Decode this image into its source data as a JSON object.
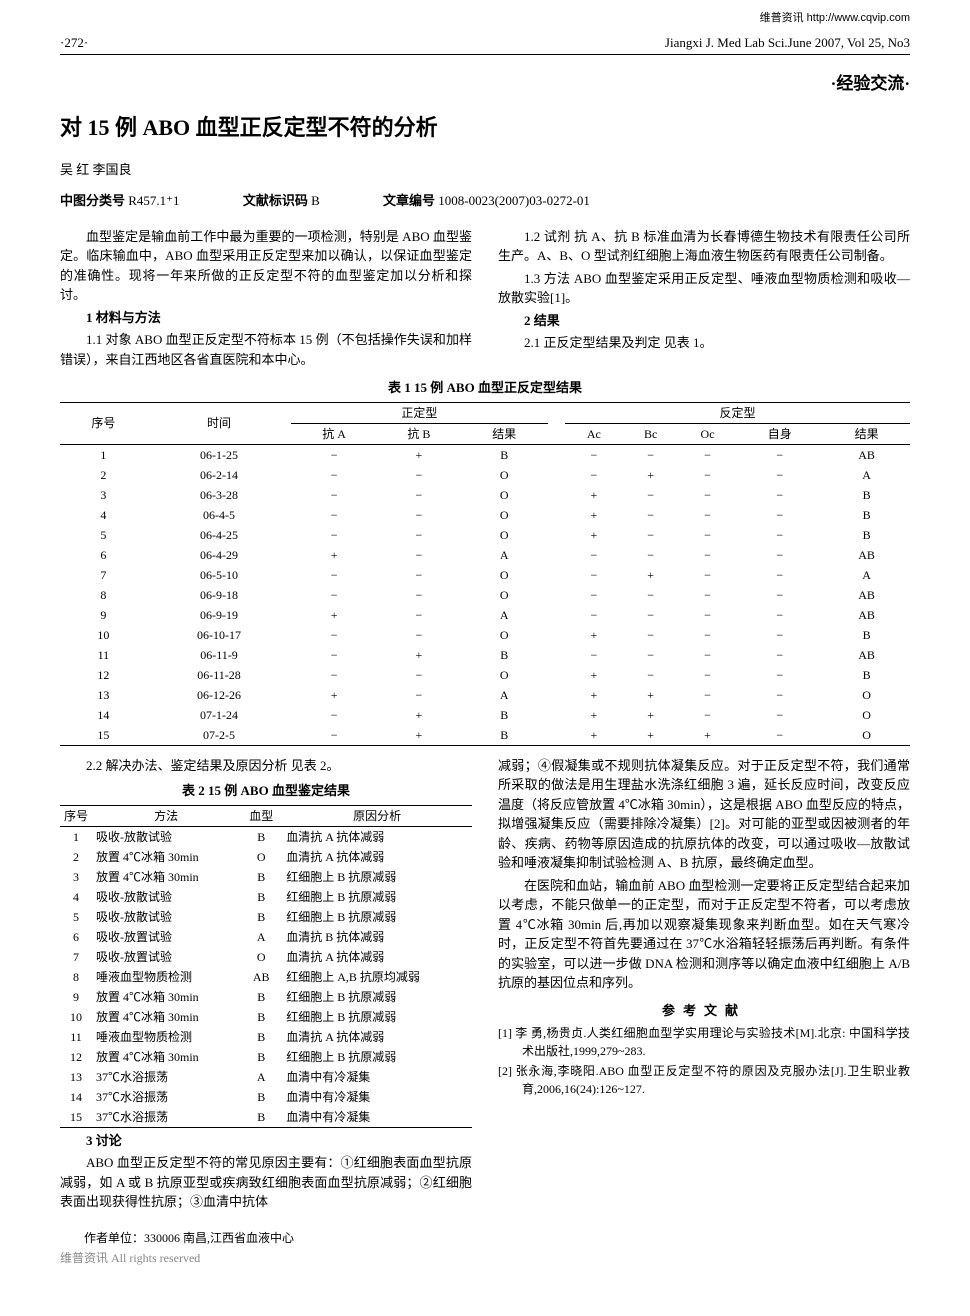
{
  "top_link": "维普资讯 http://www.cqvip.com",
  "page_number": "·272·",
  "journal_header": "Jiangxi J. Med Lab Sci.June  2007, Vol 25, No3",
  "section_label": "·经验交流·",
  "title": "对 15 例 ABO 血型正反定型不符的分析",
  "authors": "吴  红  李国良",
  "class_no_label": "中图分类号",
  "class_no": "R457.1⁺1",
  "doc_code_label": "文献标识码",
  "doc_code": "B",
  "article_no_label": "文章编号",
  "article_no": "1008-0023(2007)03-0272-01",
  "intro_p1": "血型鉴定是输血前工作中最为重要的一项检测，特别是 ABO 血型鉴定。临床输血中，ABO 血型采用正反定型来加以确认，以保证血型鉴定的准确性。现将一年来所做的正反定型不符的血型鉴定加以分析和探讨。",
  "h1": "1  材料与方法",
  "p11": "1.1  对象  ABO 血型正反定型不符标本 15 例（不包括操作失误和加样错误），来自江西地区各省直医院和本中心。",
  "p12": "1.2  试剂  抗 A、抗 B 标准血清为长春博德生物技术有限责任公司所生产。A、B、O 型试剂红细胞上海血液生物医药有限责任公司制备。",
  "p13": "1.3  方法  ABO 血型鉴定采用正反定型、唾液血型物质检测和吸收—放散实验[1]。",
  "h2": "2  结果",
  "p21": "2.1  正反定型结果及判定  见表 1。",
  "tbl1_caption": "表 1  15 例 ABO 血型正反定型结果",
  "tbl1": {
    "col_seq": "序号",
    "col_time": "时间",
    "grp_forward": "正定型",
    "grp_reverse": "反定型",
    "col_antiA": "抗 A",
    "col_antiB": "抗 B",
    "col_res1": "结果",
    "col_Ac": "Ac",
    "col_Bc": "Bc",
    "col_Oc": "Oc",
    "col_self": "自身",
    "col_res2": "结果",
    "rows": [
      [
        "1",
        "06-1-25",
        "−",
        "+",
        "B",
        "−",
        "−",
        "−",
        "−",
        "AB"
      ],
      [
        "2",
        "06-2-14",
        "−",
        "−",
        "O",
        "−",
        "+",
        "−",
        "−",
        "A"
      ],
      [
        "3",
        "06-3-28",
        "−",
        "−",
        "O",
        "+",
        "−",
        "−",
        "−",
        "B"
      ],
      [
        "4",
        "06-4-5",
        "−",
        "−",
        "O",
        "+",
        "−",
        "−",
        "−",
        "B"
      ],
      [
        "5",
        "06-4-25",
        "−",
        "−",
        "O",
        "+",
        "−",
        "−",
        "−",
        "B"
      ],
      [
        "6",
        "06-4-29",
        "+",
        "−",
        "A",
        "−",
        "−",
        "−",
        "−",
        "AB"
      ],
      [
        "7",
        "06-5-10",
        "−",
        "−",
        "O",
        "−",
        "+",
        "−",
        "−",
        "A"
      ],
      [
        "8",
        "06-9-18",
        "−",
        "−",
        "O",
        "−",
        "−",
        "−",
        "−",
        "AB"
      ],
      [
        "9",
        "06-9-19",
        "+",
        "−",
        "A",
        "−",
        "−",
        "−",
        "−",
        "AB"
      ],
      [
        "10",
        "06-10-17",
        "−",
        "−",
        "O",
        "+",
        "−",
        "−",
        "−",
        "B"
      ],
      [
        "11",
        "06-11-9",
        "−",
        "+",
        "B",
        "−",
        "−",
        "−",
        "−",
        "AB"
      ],
      [
        "12",
        "06-11-28",
        "−",
        "−",
        "O",
        "+",
        "−",
        "−",
        "−",
        "B"
      ],
      [
        "13",
        "06-12-26",
        "+",
        "−",
        "A",
        "+",
        "+",
        "−",
        "−",
        "O"
      ],
      [
        "14",
        "07-1-24",
        "−",
        "+",
        "B",
        "+",
        "+",
        "−",
        "−",
        "O"
      ],
      [
        "15",
        "07-2-5",
        "−",
        "+",
        "B",
        "+",
        "+",
        "+",
        "−",
        "O"
      ]
    ]
  },
  "p22": "2.2  解决办法、鉴定结果及原因分析  见表 2。",
  "tbl2_caption": "表 2  15 例 ABO 血型鉴定结果",
  "tbl2": {
    "col_seq": "序号",
    "col_method": "方法",
    "col_type": "血型",
    "col_reason": "原因分析",
    "rows": [
      [
        "1",
        "吸收-放散试验",
        "B",
        "血清抗 A 抗体减弱"
      ],
      [
        "2",
        "放置 4℃冰箱 30min",
        "O",
        "血清抗 A 抗体减弱"
      ],
      [
        "3",
        "放置 4℃冰箱 30min",
        "B",
        "红细胞上 B 抗原减弱"
      ],
      [
        "4",
        "吸收-放散试验",
        "B",
        "红细胞上 B 抗原减弱"
      ],
      [
        "5",
        "吸收-放散试验",
        "B",
        "红细胞上 B 抗原减弱"
      ],
      [
        "6",
        "吸收-放置试验",
        "A",
        "血清抗 B 抗体减弱"
      ],
      [
        "7",
        "吸收-放置试验",
        "O",
        "血清抗 A 抗体减弱"
      ],
      [
        "8",
        "唾液血型物质检测",
        "AB",
        "红细胞上 A,B 抗原均减弱"
      ],
      [
        "9",
        "放置 4℃冰箱 30min",
        "B",
        "红细胞上 B 抗原减弱"
      ],
      [
        "10",
        "放置 4℃冰箱 30min",
        "B",
        "红细胞上 B 抗原减弱"
      ],
      [
        "11",
        "唾液血型物质检测",
        "B",
        "血清抗 A 抗体减弱"
      ],
      [
        "12",
        "放置 4℃冰箱 30min",
        "B",
        "红细胞上 B 抗原减弱"
      ],
      [
        "13",
        "37℃水浴振荡",
        "A",
        "血清中有冷凝集"
      ],
      [
        "14",
        "37℃水浴振荡",
        "B",
        "血清中有冷凝集"
      ],
      [
        "15",
        "37℃水浴振荡",
        "B",
        "血清中有冷凝集"
      ]
    ]
  },
  "h3": "3  讨论",
  "disc_p1": "ABO 血型正反定型不符的常见原因主要有：①红细胞表面血型抗原减弱，如 A 或 B 抗原亚型或疾病致红细胞表面血型抗原减弱；②红细胞表面出现获得性抗原；③血清中抗体",
  "disc_p2": "减弱；④假凝集或不规则抗体凝集反应。对于正反定型不符，我们通常所采取的做法是用生理盐水洗涤红细胞 3 遍，延长反应时间，改变反应温度（将反应管放置 4℃冰箱 30min），这是根据 ABO 血型反应的特点，拟增强凝集反应（需要排除冷凝集）[2]。对可能的亚型或因被测者的年龄、疾病、药物等原因造成的抗原抗体的改变，可以通过吸收—放散试验和唾液凝集抑制试验检测 A、B 抗原，最终确定血型。",
  "disc_p3": "在医院和血站，输血前 ABO 血型检测一定要将正反定型结合起来加以考虑，不能只做单一的正定型，而对于正反定型不符者，可以考虑放置 4℃冰箱 30min 后,再加以观察凝集现象来判断血型。如在天气寒冷时，正反定型不符首先要通过在 37℃水浴箱轻轻振荡后再判断。有条件的实验室，可以进一步做 DNA 检测和测序等以确定血液中红细胞上 A/B 抗原的基因位点和序列。",
  "refs_title": "参考文献",
  "refs": [
    "[1] 李  勇,杨贵贞.人类红细胞血型学实用理论与实验技术[M].北京: 中国科学技术出版社,1999,279~283.",
    "[2] 张永海,李晓阳.ABO 血型正反定型不符的原因及克服办法[J].卫生职业教育,2006,16(24):126~127."
  ],
  "affiliation": "作者单位：330006  南昌,江西省血液中心",
  "watermark": "维普资讯 All rights reserved"
}
